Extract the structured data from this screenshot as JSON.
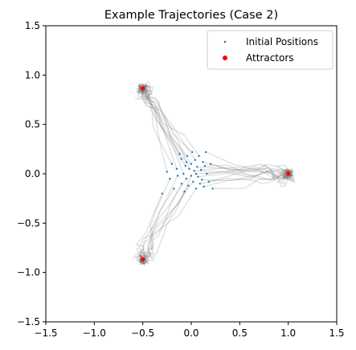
{
  "chart_data": {
    "type": "scatter",
    "title": "Example Trajectories (Case 2)",
    "xlabel": "",
    "ylabel": "",
    "xlim": [
      -1.5,
      1.5
    ],
    "ylim": [
      -1.5,
      1.5
    ],
    "x_ticks": [
      -1.5,
      -1.0,
      -0.5,
      0.0,
      0.5,
      1.0,
      1.5
    ],
    "y_ticks": [
      -1.5,
      -1.0,
      -0.5,
      0.0,
      0.5,
      1.0,
      1.5
    ],
    "x_tick_labels": [
      "−1.5",
      "−1.0",
      "−0.5",
      "0.0",
      "0.5",
      "1.0",
      "1.5"
    ],
    "y_tick_labels": [
      "−1.5",
      "−1.0",
      "−0.5",
      "0.0",
      "0.5",
      "1.0",
      "1.5"
    ],
    "grid": false,
    "legend_position": "top-right",
    "colors": {
      "initial": "#1f77b4",
      "attractor": "#ff0000",
      "trajectory": "#808080"
    },
    "series": [
      {
        "name": "Initial Positions",
        "marker": "dot",
        "points": [
          [
            -0.25,
            0.02
          ],
          [
            -0.22,
            -0.05
          ],
          [
            -0.2,
            0.1
          ],
          [
            -0.18,
            -0.15
          ],
          [
            -0.15,
            0.05
          ],
          [
            -0.14,
            -0.02
          ],
          [
            -0.12,
            0.2
          ],
          [
            -0.1,
            -0.1
          ],
          [
            -0.1,
            0.15
          ],
          [
            -0.08,
            0.0
          ],
          [
            -0.07,
            -0.18
          ],
          [
            -0.06,
            0.08
          ],
          [
            -0.05,
            -0.05
          ],
          [
            -0.04,
            0.18
          ],
          [
            -0.03,
            -0.12
          ],
          [
            -0.02,
            0.05
          ],
          [
            0.0,
            0.1
          ],
          [
            0.0,
            -0.02
          ],
          [
            0.01,
            0.22
          ],
          [
            0.02,
            -0.08
          ],
          [
            0.03,
            0.03
          ],
          [
            0.04,
            0.14
          ],
          [
            0.05,
            -0.15
          ],
          [
            0.06,
            0.07
          ],
          [
            0.07,
            -0.03
          ],
          [
            0.08,
            0.18
          ],
          [
            0.09,
            -0.1
          ],
          [
            0.1,
            0.04
          ],
          [
            0.11,
            -0.06
          ],
          [
            0.12,
            0.12
          ],
          [
            0.13,
            -0.13
          ],
          [
            0.15,
            0.22
          ],
          [
            0.16,
            0.0
          ],
          [
            0.18,
            -0.08
          ],
          [
            0.2,
            0.1
          ],
          [
            0.22,
            -0.15
          ],
          [
            -0.3,
            -0.2
          ],
          [
            0.05,
            0.0
          ],
          [
            -0.05,
            0.12
          ],
          [
            0.14,
            0.08
          ]
        ]
      },
      {
        "name": "Attractors",
        "marker": "circle",
        "points": [
          [
            1.0,
            0.0
          ],
          [
            -0.5,
            0.866
          ],
          [
            -0.5,
            -0.866
          ]
        ]
      }
    ]
  }
}
